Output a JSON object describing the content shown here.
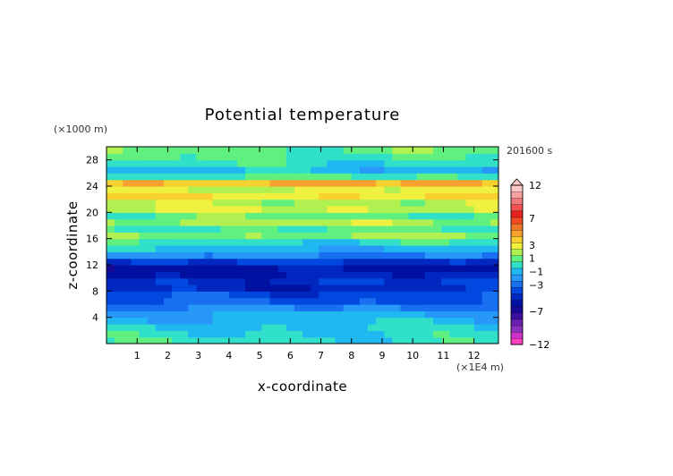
{
  "chart_data": {
    "type": "heatmap",
    "title": "Potential temperature",
    "time_label": "201600 s",
    "xlabel": "x-coordinate",
    "ylabel": "z-coordinate",
    "x_unit": "(×1E4 m)",
    "y_unit": "(×1000 m)",
    "xlim": [
      0,
      12.8
    ],
    "ylim": [
      0,
      30
    ],
    "x_ticks": [
      "1",
      "2",
      "3",
      "4",
      "5",
      "6",
      "7",
      "8",
      "9",
      "10",
      "11",
      "12"
    ],
    "y_ticks": [
      "4",
      "8",
      "12",
      "16",
      "20",
      "24",
      "28"
    ],
    "colorbar": {
      "levels": [
        -12,
        -11,
        -10,
        -9,
        -8,
        -7,
        -6,
        -5,
        -4,
        -3,
        -2,
        -1,
        0,
        1,
        2,
        3,
        4,
        5,
        6,
        7,
        8,
        9,
        10,
        11,
        12
      ],
      "labels": [
        "12",
        "7",
        "3",
        "1",
        "−1",
        "−3",
        "−7",
        "−12"
      ],
      "colors": [
        "#ff3fc0",
        "#cc33cc",
        "#8a2fbe",
        "#6a1fb0",
        "#3a0fa0",
        "#1a0898",
        "#0010a0",
        "#0028c0",
        "#0048e0",
        "#1870f0",
        "#2898f8",
        "#20b8f0",
        "#30e0c8",
        "#60f080",
        "#b0f050",
        "#f0f040",
        "#f8d030",
        "#f8a030",
        "#f07828",
        "#f04820",
        "#e82020",
        "#f05050",
        "#f07878",
        "#f8a0a0",
        "#ffc8c8"
      ]
    },
    "vertical_profile": [
      {
        "z": 0.5,
        "value": 0.5
      },
      {
        "z": 1.5,
        "value": 0.2
      },
      {
        "z": 2.5,
        "value": 0.0
      },
      {
        "z": 3.5,
        "value": -0.5
      },
      {
        "z": 4.5,
        "value": -1.0
      },
      {
        "z": 5.5,
        "value": -2.0
      },
      {
        "z": 6.5,
        "value": -3.0
      },
      {
        "z": 7.5,
        "value": -3.5
      },
      {
        "z": 8.5,
        "value": -4.5
      },
      {
        "z": 9.5,
        "value": -4.2
      },
      {
        "z": 10.5,
        "value": -5.0
      },
      {
        "z": 11.5,
        "value": -5.5
      },
      {
        "z": 12.5,
        "value": -4.0
      },
      {
        "z": 13.5,
        "value": -2.0
      },
      {
        "z": 14.5,
        "value": -0.5
      },
      {
        "z": 15.5,
        "value": 0.5
      },
      {
        "z": 16.5,
        "value": 2.0
      },
      {
        "z": 17.5,
        "value": 1.0
      },
      {
        "z": 18.5,
        "value": 2.5
      },
      {
        "z": 19.5,
        "value": 1.5
      },
      {
        "z": 20.5,
        "value": 3.0
      },
      {
        "z": 21.5,
        "value": 2.5
      },
      {
        "z": 22.5,
        "value": 4.0
      },
      {
        "z": 23.5,
        "value": 3.0
      },
      {
        "z": 24.5,
        "value": 5.0
      },
      {
        "z": 25.5,
        "value": 1.0
      },
      {
        "z": 26.5,
        "value": -0.5
      },
      {
        "z": 27.5,
        "value": 0.5
      },
      {
        "z": 28.5,
        "value": 1.0
      },
      {
        "z": 29.5,
        "value": 1.5
      }
    ],
    "grid": false,
    "legend": "right"
  }
}
